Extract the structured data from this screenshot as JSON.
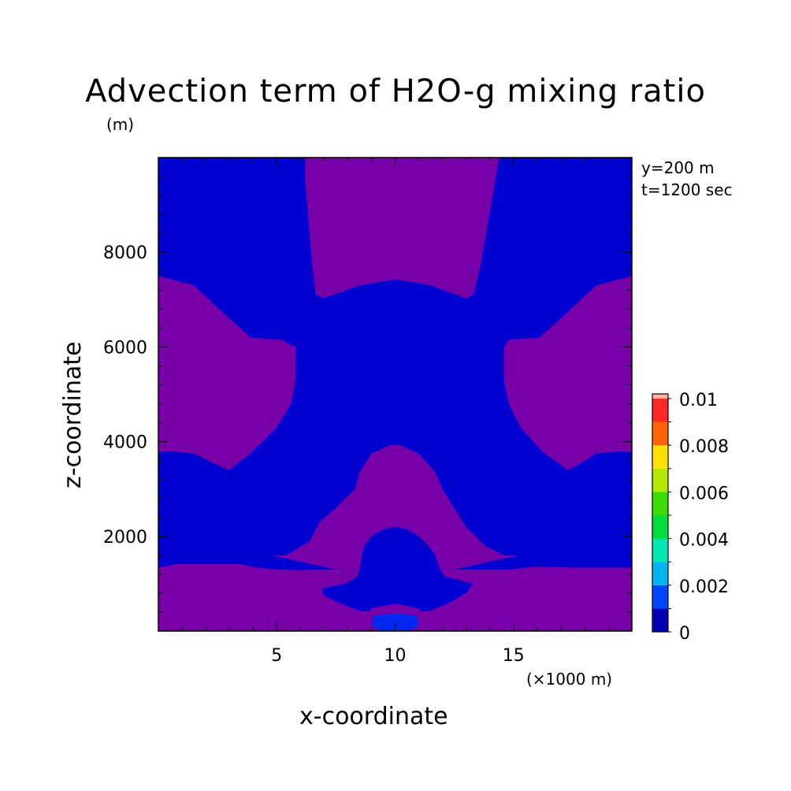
{
  "title": "Advection term of H2O-g mixing ratio",
  "y_unit": "(m)",
  "info": [
    "y=200 m",
    "t=1200 sec"
  ],
  "x_unit": "(×1000 m)",
  "chart_data": {
    "type": "heatmap",
    "title": "Advection term of H2O-g mixing ratio",
    "xlabel": "x-coordinate",
    "ylabel": "z-coordinate",
    "xlim": [
      0,
      20
    ],
    "ylim": [
      0,
      10000
    ],
    "x_ticks": [
      5,
      10,
      15
    ],
    "y_ticks": [
      2000,
      4000,
      6000,
      8000
    ],
    "x_unit": "(×1000 m)",
    "y_unit": "(m)",
    "annotations": [
      "y=200 m",
      "t=1200 sec"
    ],
    "grid": false,
    "colorbar": {
      "levels": [
        0,
        0.001,
        0.002,
        0.003,
        0.004,
        0.005,
        0.006,
        0.007,
        0.008,
        0.009,
        0.01
      ],
      "tick_labels": [
        "0",
        "0.002",
        "0.004",
        "0.006",
        "0.008",
        "0.01"
      ],
      "colors": [
        "#0000b4",
        "#0046ff",
        "#00b4f0",
        "#00e6b4",
        "#00dc3c",
        "#3cdc00",
        "#b4e600",
        "#ffe100",
        "#ff6400",
        "#ff2828"
      ],
      "placement": "right"
    },
    "colors": {
      "background": "#0000d0",
      "feature": "#7800a8",
      "small_blue": "#0028f0"
    },
    "regions": [
      {
        "name": "top-center",
        "color": "feature",
        "points": [
          [
            6.2,
            10000
          ],
          [
            6.2,
            9500
          ],
          [
            6.5,
            7700
          ],
          [
            6.65,
            7100
          ],
          [
            7.0,
            7030
          ],
          [
            8.5,
            7300
          ],
          [
            10,
            7430
          ],
          [
            11.5,
            7300
          ],
          [
            13.0,
            7030
          ],
          [
            13.3,
            7100
          ],
          [
            13.6,
            7700
          ],
          [
            14.4,
            10000
          ]
        ]
      },
      {
        "name": "left-lobe",
        "color": "feature",
        "points": [
          [
            0,
            7500
          ],
          [
            1.5,
            7300
          ],
          [
            3.0,
            6600
          ],
          [
            3.9,
            6200
          ],
          [
            5.2,
            6150
          ],
          [
            5.8,
            6000
          ],
          [
            5.8,
            5300
          ],
          [
            5.6,
            4800
          ],
          [
            5.0,
            4300
          ],
          [
            4.0,
            3800
          ],
          [
            3.0,
            3400
          ],
          [
            2.5,
            3500
          ],
          [
            1.5,
            3750
          ],
          [
            0.5,
            3800
          ],
          [
            0,
            3780
          ]
        ]
      },
      {
        "name": "right-lobe",
        "color": "feature",
        "points": [
          [
            20,
            7500
          ],
          [
            18.5,
            7300
          ],
          [
            17.0,
            6600
          ],
          [
            16.1,
            6200
          ],
          [
            14.8,
            6150
          ],
          [
            14.6,
            6000
          ],
          [
            14.6,
            5300
          ],
          [
            14.8,
            4800
          ],
          [
            15.3,
            4300
          ],
          [
            16.2,
            3800
          ],
          [
            17.3,
            3400
          ],
          [
            17.7,
            3500
          ],
          [
            18.5,
            3750
          ],
          [
            19.5,
            3800
          ],
          [
            20,
            3780
          ]
        ]
      },
      {
        "name": "center-dome",
        "color": "feature",
        "points": [
          [
            7.5,
            2600
          ],
          [
            7.9,
            2800
          ],
          [
            8.3,
            3000
          ],
          [
            8.5,
            3350
          ],
          [
            9.0,
            3750
          ],
          [
            9.8,
            3930
          ],
          [
            10.2,
            3930
          ],
          [
            11.0,
            3750
          ],
          [
            11.7,
            3350
          ],
          [
            12.0,
            3000
          ],
          [
            12.5,
            2600
          ],
          [
            13.0,
            2200
          ],
          [
            13.8,
            1800
          ],
          [
            14.6,
            1600
          ],
          [
            15.2,
            1600
          ],
          [
            12.5,
            1300
          ],
          [
            7.5,
            1300
          ],
          [
            4.8,
            1600
          ],
          [
            5.4,
            1600
          ],
          [
            6.4,
            1900
          ],
          [
            6.8,
            2300
          ]
        ]
      },
      {
        "name": "bottom-band",
        "color": "feature",
        "points": [
          [
            0,
            1340
          ],
          [
            0.8,
            1420
          ],
          [
            2.8,
            1420
          ],
          [
            3.4,
            1420
          ],
          [
            4.2,
            1340
          ],
          [
            5.1,
            1300
          ],
          [
            5.6,
            1290
          ],
          [
            8.2,
            1300
          ],
          [
            11.0,
            1300
          ],
          [
            14.8,
            1300
          ],
          [
            16.0,
            1360
          ],
          [
            17.5,
            1340
          ],
          [
            20,
            1340
          ],
          [
            20,
            0
          ],
          [
            0,
            0
          ]
        ]
      },
      {
        "name": "center-blue-bubble",
        "color": "background",
        "points": [
          [
            9.0,
            2000
          ],
          [
            9.5,
            2150
          ],
          [
            10,
            2200
          ],
          [
            10.5,
            2150
          ],
          [
            11.0,
            2000
          ],
          [
            11.4,
            1800
          ],
          [
            11.7,
            1600
          ],
          [
            11.9,
            1300
          ],
          [
            12.1,
            1150
          ],
          [
            13.3,
            1000
          ],
          [
            13.0,
            800
          ],
          [
            12.3,
            600
          ],
          [
            11.5,
            430
          ],
          [
            10,
            380
          ],
          [
            8.5,
            430
          ],
          [
            7.6,
            600
          ],
          [
            7.0,
            750
          ],
          [
            6.9,
            900
          ],
          [
            7.9,
            1000
          ],
          [
            8.4,
            1150
          ],
          [
            8.5,
            1300
          ],
          [
            8.6,
            1600
          ],
          [
            8.7,
            1800
          ]
        ]
      },
      {
        "name": "bottom-arch",
        "color": "feature",
        "points": [
          [
            9.0,
            480
          ],
          [
            10,
            580
          ],
          [
            11.0,
            480
          ],
          [
            11.2,
            300
          ],
          [
            11.1,
            80
          ],
          [
            8.9,
            80
          ],
          [
            8.8,
            300
          ]
        ]
      },
      {
        "name": "bottom-small-blue",
        "color": "small_blue",
        "points": [
          [
            9.1,
            330
          ],
          [
            10,
            380
          ],
          [
            10.9,
            330
          ],
          [
            11.0,
            120
          ],
          [
            10.6,
            0
          ],
          [
            9.4,
            0
          ],
          [
            9.0,
            120
          ]
        ]
      }
    ]
  }
}
